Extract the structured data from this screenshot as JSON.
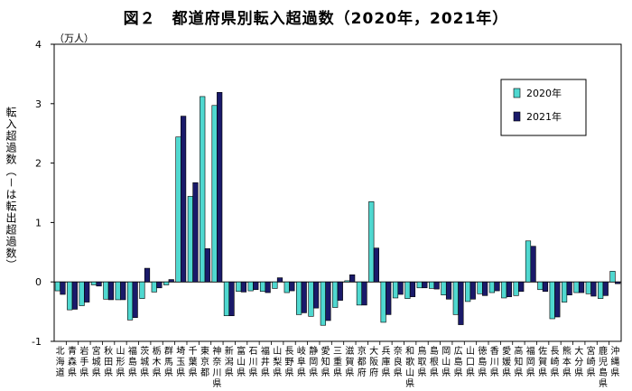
{
  "chart_data": {
    "type": "bar",
    "title": "図２　都道府県別転入超過数（2020年，2021年）",
    "unit": "（万人）",
    "ylabel": "転入超過数（－は転出超過数）",
    "ylim": [
      -1,
      4
    ],
    "yticks": [
      "-1",
      "0",
      "1",
      "2",
      "3",
      "4"
    ],
    "legend_position": "top-right",
    "categories": [
      "北海道",
      "青森",
      "岩手",
      "宮城",
      "秋田",
      "山形",
      "福島",
      "茨城",
      "栃木",
      "群馬",
      "埼玉",
      "千葉",
      "東京都",
      "神奈川",
      "新潟",
      "富山",
      "石川",
      "福井",
      "山梨",
      "長野",
      "岐阜",
      "静岡",
      "愛知",
      "三重",
      "滋賀",
      "京都府",
      "大阪府",
      "兵庫",
      "奈良",
      "和歌山",
      "鳥取",
      "島根",
      "岡山",
      "広島",
      "山口",
      "徳島",
      "香川",
      "愛媛",
      "高知",
      "福岡",
      "佐賀",
      "長崎",
      "熊本",
      "大分",
      "宮崎",
      "鹿児島",
      "沖縄"
    ],
    "category_suffix": "県",
    "series": [
      {
        "name": "2020年",
        "color": "#4fd8d0",
        "values": [
          -0.15,
          -0.47,
          -0.4,
          -0.05,
          -0.29,
          -0.3,
          -0.64,
          -0.28,
          -0.17,
          -0.05,
          2.44,
          1.44,
          3.12,
          2.97,
          -0.57,
          -0.16,
          -0.15,
          -0.16,
          -0.11,
          -0.18,
          -0.55,
          -0.58,
          -0.73,
          -0.43,
          0.02,
          -0.39,
          1.35,
          -0.68,
          -0.27,
          -0.28,
          -0.1,
          -0.11,
          -0.22,
          -0.55,
          -0.33,
          -0.2,
          -0.18,
          -0.27,
          -0.23,
          0.69,
          -0.13,
          -0.62,
          -0.34,
          -0.18,
          -0.2,
          -0.28,
          0.18
        ]
      },
      {
        "name": "2021年",
        "color": "#1a1a6a",
        "values": [
          -0.21,
          -0.46,
          -0.34,
          -0.07,
          -0.3,
          -0.3,
          -0.6,
          0.23,
          -0.1,
          0.04,
          2.79,
          1.67,
          0.56,
          3.19,
          -0.57,
          -0.17,
          -0.13,
          -0.18,
          0.07,
          -0.15,
          -0.52,
          -0.44,
          -0.65,
          -0.31,
          0.12,
          -0.39,
          0.57,
          -0.55,
          -0.21,
          -0.25,
          -0.1,
          -0.12,
          -0.29,
          -0.72,
          -0.29,
          -0.23,
          -0.15,
          -0.25,
          -0.16,
          0.6,
          -0.16,
          -0.59,
          -0.22,
          -0.18,
          -0.24,
          -0.23,
          -0.03
        ]
      }
    ]
  }
}
